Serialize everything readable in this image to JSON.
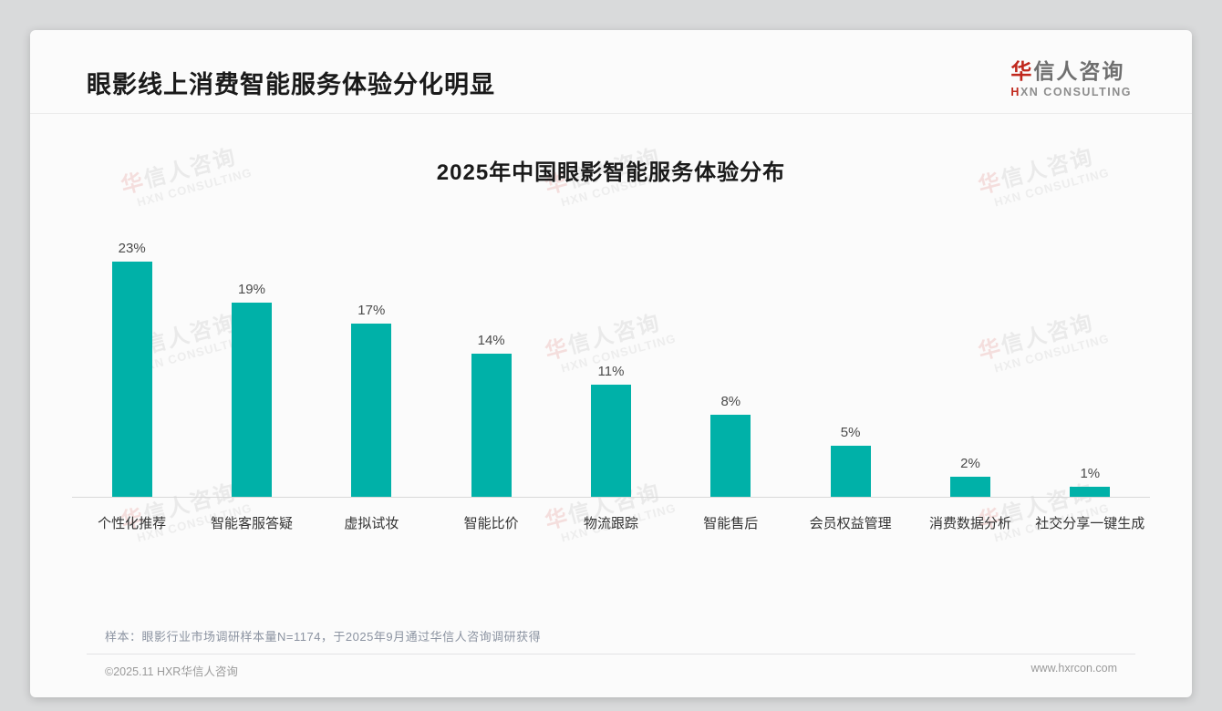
{
  "page": {
    "title": "眼影线上消费智能服务体验分化明显",
    "logo": {
      "zh_accent": "华",
      "zh_rest": "信人咨询",
      "en_accent": "H",
      "en_rest": "XN CONSULTING"
    },
    "note": "样本：眼影行业市场调研样本量N=1174，于2025年9月通过华信人咨询调研获得",
    "footer_left": "©2025.11 HXR华信人咨询",
    "footer_right": "www.hxrcon.com",
    "watermark": {
      "zh_accent": "华",
      "zh_rest": "信人咨询",
      "en": "HXN CONSULTING"
    }
  },
  "chart_data": {
    "type": "bar",
    "title": "2025年中国眼影智能服务体验分布",
    "categories": [
      "个性化推荐",
      "智能客服答疑",
      "虚拟试妆",
      "智能比价",
      "物流跟踪",
      "智能售后",
      "会员权益管理",
      "消费数据分析",
      "社交分享一键生成"
    ],
    "values": [
      23,
      19,
      17,
      14,
      11,
      8,
      5,
      2,
      1
    ],
    "unit": "%",
    "bar_color": "#00b1a8",
    "value_label_position": "above",
    "xlabel": "",
    "ylabel": "",
    "ylim": [
      0,
      25
    ],
    "grid": false,
    "legend": "none"
  }
}
